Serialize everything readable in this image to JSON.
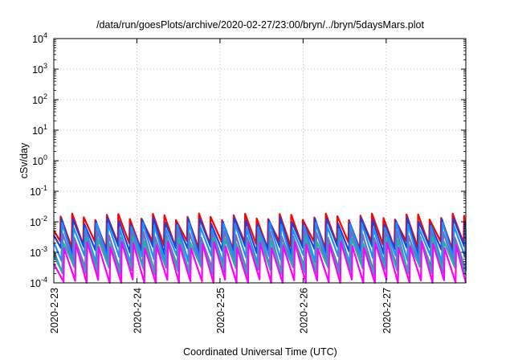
{
  "chart_data": {
    "type": "line",
    "title": "/data/run/goesPlots/archive/2020-02-27/23:00/bryn/../bryn/5daysMars.plot",
    "xlabel": "Coordinated Universal Time (UTC)",
    "ylabel": "cSv/day",
    "x_range": [
      "2020-02-23",
      "2020-02-27T23:00"
    ],
    "ylim": [
      0.0001,
      10000
    ],
    "y_scale": "log",
    "grid": true,
    "legend": "none",
    "x_ticks": [
      "2020-2-23",
      "2020-2-24",
      "2020-2-25",
      "2020-2-26",
      "2020-2-27"
    ],
    "y_ticks": [
      {
        "base": "10",
        "exp": "4",
        "value": 10000
      },
      {
        "base": "10",
        "exp": "3",
        "value": 1000
      },
      {
        "base": "10",
        "exp": "2",
        "value": 100
      },
      {
        "base": "10",
        "exp": "1",
        "value": 10
      },
      {
        "base": "10",
        "exp": "0",
        "value": 1
      },
      {
        "base": "10",
        "exp": "-1",
        "value": 0.1
      },
      {
        "base": "10",
        "exp": "-2",
        "value": 0.01
      },
      {
        "base": "10",
        "exp": "-3",
        "value": 0.001
      },
      {
        "base": "10",
        "exp": "-4",
        "value": 0.0001
      }
    ],
    "cycle_hours": 3.33,
    "series": [
      {
        "color": "#ff0000",
        "peak": 0.015,
        "trough": 0.0018
      },
      {
        "color": "#1f3fd6",
        "peak": 0.011,
        "trough": 0.0012
      },
      {
        "color": "#1e8fff",
        "peak": 0.0075,
        "trough": 0.0006
      },
      {
        "color": "#7070c0",
        "peak": 0.004,
        "trough": 0.0003
      },
      {
        "color": "#20b2aa",
        "peak": 0.0025,
        "trough": 0.00025
      },
      {
        "color": "#ff00ff",
        "peak": 0.0018,
        "trough": 0.0001
      }
    ]
  }
}
